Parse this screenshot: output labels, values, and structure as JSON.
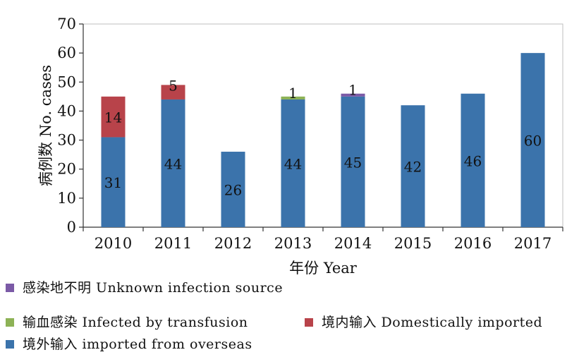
{
  "chart_data": {
    "type": "bar",
    "stacked": true,
    "categories": [
      "2010",
      "2011",
      "2012",
      "2013",
      "2014",
      "2015",
      "2016",
      "2017"
    ],
    "series": [
      {
        "name": "境外输入 imported from overseas",
        "color": "#3b73ab",
        "values": [
          31,
          44,
          26,
          44,
          45,
          42,
          46,
          60
        ]
      },
      {
        "name": "境内输入 Domestically imported",
        "color": "#b8434a",
        "values": [
          14,
          5,
          0,
          0,
          0,
          0,
          0,
          0
        ]
      },
      {
        "name": "输血感染 Infected by transfusion",
        "color": "#8db256",
        "values": [
          0,
          0,
          0,
          1,
          0,
          0,
          0,
          0
        ]
      },
      {
        "name": "感染地不明 Unknown infection source",
        "color": "#7b5aa6",
        "values": [
          0,
          0,
          0,
          0,
          1,
          0,
          0,
          0
        ]
      }
    ],
    "ylim": [
      0,
      70
    ],
    "yticks": [
      0,
      10,
      20,
      30,
      40,
      50,
      60,
      70
    ],
    "xlabel": "年份 Year",
    "ylabel": "病例数 No. cases",
    "grid": false
  },
  "legend": [
    {
      "label": "感染地不明 Unknown infection source",
      "color": "#7b5aa6"
    },
    {
      "label": "输血感染 Infected by transfusion",
      "color": "#8db256"
    },
    {
      "label": "境内输入 Domestically imported",
      "color": "#b8434a"
    },
    {
      "label": "境外输入 imported from overseas",
      "color": "#3b73ab"
    }
  ]
}
